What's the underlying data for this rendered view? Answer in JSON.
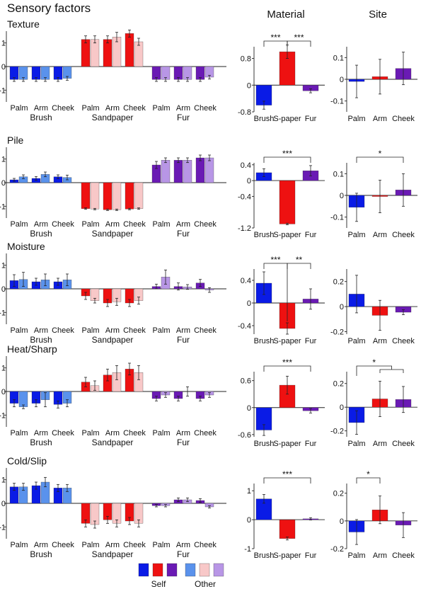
{
  "figure": {
    "title": "Sensory factors",
    "column_headers": [
      "Material",
      "Site"
    ],
    "legend": {
      "self_label": "Self",
      "other_label": "Other",
      "swatches_self": [
        "#0a1be6",
        "#ee1111",
        "#6a1ab4"
      ],
      "swatches_other": [
        "#5a92ec",
        "#f8c8c8",
        "#b896e6"
      ]
    }
  },
  "colors": {
    "brush_self": "#0a1be6",
    "brush_other": "#5a92ec",
    "sand_self": "#ee1111",
    "sand_other": "#f8c8c8",
    "fur_self": "#6a1ab4",
    "fur_other": "#b896e6"
  },
  "chart_data": [
    {
      "type": "bar",
      "panel": "Texture",
      "title": "Texture",
      "materials": [
        "Brush",
        "Sandpaper",
        "Fur"
      ],
      "sites": [
        "Palm",
        "Arm",
        "Cheek"
      ],
      "ylim": [
        -1.5,
        1.5
      ],
      "ytick_labels": [
        "1",
        "0",
        "-1"
      ],
      "series": [
        {
          "name": "Self",
          "values": [
            -0.55,
            -0.55,
            -0.55,
            1.15,
            1.15,
            1.4,
            -0.55,
            -0.55,
            -0.55
          ],
          "err": [
            0.08,
            0.08,
            0.08,
            0.15,
            0.15,
            0.15,
            0.08,
            0.08,
            0.08
          ]
        },
        {
          "name": "Other",
          "values": [
            -0.55,
            -0.55,
            -0.5,
            1.15,
            1.25,
            1.05,
            -0.55,
            -0.55,
            -0.45
          ],
          "err": [
            0.08,
            0.08,
            0.08,
            0.15,
            0.2,
            0.15,
            0.08,
            0.08,
            0.08
          ]
        }
      ]
    },
    {
      "type": "bar",
      "panel": "Pile",
      "title": "Pile",
      "materials": [
        "Brush",
        "Sandpaper",
        "Fur"
      ],
      "sites": [
        "Palm",
        "Arm",
        "Cheek"
      ],
      "ylim": [
        -1.5,
        1.5
      ],
      "ytick_labels": [
        "1",
        "0",
        "-1"
      ],
      "series": [
        {
          "name": "Self",
          "values": [
            0.12,
            0.18,
            0.25,
            -1.1,
            -1.15,
            -1.12,
            0.75,
            0.95,
            1.05
          ],
          "err": [
            0.06,
            0.08,
            0.08,
            0.03,
            0.03,
            0.03,
            0.15,
            0.1,
            0.12
          ]
        },
        {
          "name": "Other",
          "values": [
            0.25,
            0.35,
            0.22,
            -1.12,
            -1.15,
            -1.1,
            0.95,
            0.95,
            1.05
          ],
          "err": [
            0.08,
            0.1,
            0.1,
            0.03,
            0.03,
            0.03,
            0.1,
            0.1,
            0.12
          ]
        }
      ]
    },
    {
      "type": "bar",
      "panel": "Moisture",
      "title": "Moisture",
      "materials": [
        "Brush",
        "Sandpaper",
        "Fur"
      ],
      "sites": [
        "Palm",
        "Arm",
        "Cheek"
      ],
      "ylim": [
        -1.5,
        1.5
      ],
      "ytick_labels": [
        "1",
        "0",
        "-1"
      ],
      "series": [
        {
          "name": "Self",
          "values": [
            0.35,
            0.3,
            0.3,
            -0.3,
            -0.6,
            -0.6,
            0.1,
            0.1,
            0.25
          ],
          "err": [
            0.25,
            0.15,
            0.15,
            0.15,
            0.15,
            0.15,
            0.1,
            0.15,
            0.15
          ]
        },
        {
          "name": "Other",
          "values": [
            0.4,
            0.38,
            0.38,
            -0.5,
            -0.55,
            -0.5,
            0.5,
            0.08,
            -0.05
          ],
          "err": [
            0.3,
            0.25,
            0.25,
            0.1,
            0.15,
            0.15,
            0.3,
            0.1,
            0.1
          ]
        }
      ]
    },
    {
      "type": "bar",
      "panel": "Heat/Sharp",
      "title": "Heat/Sharp",
      "materials": [
        "Brush",
        "Sandpaper",
        "Fur"
      ],
      "sites": [
        "Palm",
        "Arm",
        "Cheek"
      ],
      "ylim": [
        -1.5,
        1.5
      ],
      "ytick_labels": [
        "1",
        "0",
        "-1"
      ],
      "series": [
        {
          "name": "Self",
          "values": [
            -0.5,
            -0.5,
            -0.55,
            0.4,
            0.7,
            0.95,
            -0.3,
            -0.3,
            -0.3
          ],
          "err": [
            0.15,
            0.15,
            0.15,
            0.2,
            0.25,
            0.25,
            0.1,
            0.1,
            0.1
          ]
        },
        {
          "name": "Other",
          "values": [
            -0.65,
            -0.35,
            -0.5,
            0.25,
            0.8,
            0.8,
            -0.15,
            0.0,
            -0.15
          ],
          "err": [
            0.08,
            0.3,
            0.15,
            0.2,
            0.3,
            0.3,
            0.1,
            0.2,
            0.1
          ]
        }
      ]
    },
    {
      "type": "bar",
      "panel": "Cold/Slip",
      "title": "Cold/Slip",
      "materials": [
        "Brush",
        "Sandpaper",
        "Fur"
      ],
      "sites": [
        "Palm",
        "Arm",
        "Cheek"
      ],
      "ylim": [
        -1.5,
        1.5
      ],
      "ytick_labels": [
        "1",
        "0",
        "-1"
      ],
      "series": [
        {
          "name": "Self",
          "values": [
            0.7,
            0.75,
            0.65,
            -0.85,
            -0.7,
            -0.75,
            -0.1,
            0.15,
            0.12
          ],
          "err": [
            0.15,
            0.15,
            0.15,
            0.15,
            0.15,
            0.15,
            0.05,
            0.08,
            0.08
          ]
        },
        {
          "name": "Other",
          "values": [
            0.7,
            0.9,
            0.65,
            -0.9,
            -0.85,
            -0.85,
            -0.1,
            0.15,
            -0.15
          ],
          "err": [
            0.15,
            0.2,
            0.15,
            0.15,
            0.15,
            0.15,
            0.05,
            0.08,
            0.05
          ]
        }
      ]
    },
    {
      "type": "bar",
      "panel": "Texture-Material",
      "categories": [
        "Brush",
        "S-paper",
        "Fur"
      ],
      "values": [
        -0.6,
        1.0,
        -0.17
      ],
      "err": [
        0.12,
        0.2,
        0.06
      ],
      "ylim": [
        -0.8,
        1.15
      ],
      "yticks": [
        0.8,
        0,
        -0.8
      ],
      "ytick_labels": [
        "0.8",
        "0",
        "-0.8"
      ],
      "significance": [
        {
          "from": 0,
          "to": 1,
          "label": "***"
        },
        {
          "from": 1,
          "to": 2,
          "label": "***"
        }
      ]
    },
    {
      "type": "bar",
      "panel": "Texture-Site",
      "categories": [
        "Palm",
        "Arm",
        "Cheek"
      ],
      "values": [
        -0.01,
        0.012,
        0.05
      ],
      "err": [
        0.075,
        0.08,
        0.075
      ],
      "ylim": [
        -0.15,
        0.15
      ],
      "yticks": [
        0.1,
        0,
        -0.1
      ],
      "ytick_labels": [
        "0.1",
        "0",
        "-0.1"
      ],
      "significance": []
    },
    {
      "type": "bar",
      "panel": "Pile-Material",
      "categories": [
        "Brush",
        "S-paper",
        "Fur"
      ],
      "values": [
        0.2,
        -1.1,
        0.25
      ],
      "err": [
        0.1,
        0.02,
        0.13
      ],
      "ylim": [
        -1.2,
        0.45
      ],
      "yticks": [
        0.4,
        0,
        -0.4,
        -1.2
      ],
      "ytick_labels": [
        "0.4",
        "0",
        "-0.4",
        "-1.2"
      ],
      "significance": [
        {
          "from": 0,
          "to": 2,
          "label": "***"
        }
      ]
    },
    {
      "type": "bar",
      "panel": "Pile-Site",
      "categories": [
        "Palm",
        "Arm",
        "Cheek"
      ],
      "values": [
        -0.055,
        -0.005,
        0.025
      ],
      "err": [
        0.065,
        0.075,
        0.075
      ],
      "ylim": [
        -0.15,
        0.15
      ],
      "yticks": [
        0.1,
        0,
        -0.1
      ],
      "ytick_labels": [
        "0.1",
        "0",
        "-0.1"
      ],
      "significance": [
        {
          "from": 0,
          "to": 2,
          "label": "*"
        }
      ]
    },
    {
      "type": "bar",
      "panel": "Moisture-Material",
      "categories": [
        "Brush",
        "S-paper",
        "Fur"
      ],
      "values": [
        0.35,
        -0.45,
        0.07
      ],
      "err": [
        0.2,
        0.1,
        0.18
      ],
      "ylim": [
        -0.55,
        0.6
      ],
      "yticks": [
        0.4,
        0,
        -0.4
      ],
      "ytick_labels": [
        "0.4",
        "0",
        "-0.4"
      ],
      "significance": [
        {
          "from": 0,
          "to": 1,
          "label": "***"
        },
        {
          "from": 1,
          "to": 2,
          "label": "**"
        }
      ]
    },
    {
      "type": "bar",
      "panel": "Moisture-Site",
      "categories": [
        "Palm",
        "Arm",
        "Cheek"
      ],
      "values": [
        0.1,
        -0.07,
        -0.045
      ],
      "err": [
        0.15,
        0.12,
        0.02
      ],
      "ylim": [
        -0.22,
        0.3
      ],
      "yticks": [
        0.2,
        0,
        -0.2
      ],
      "ytick_labels": [
        "0.2",
        "0",
        "-0.2"
      ],
      "significance": []
    },
    {
      "type": "bar",
      "panel": "Heat/Sharp-Material",
      "categories": [
        "Brush",
        "S-paper",
        "Fur"
      ],
      "values": [
        -0.5,
        0.5,
        -0.07
      ],
      "err": [
        0.12,
        0.2,
        0.05
      ],
      "ylim": [
        -0.65,
        0.8
      ],
      "yticks": [
        0.6,
        0,
        -0.6
      ],
      "ytick_labels": [
        "0.6",
        "0",
        "-0.6"
      ],
      "significance": [
        {
          "from": 0,
          "to": 2,
          "label": "***"
        }
      ]
    },
    {
      "type": "bar",
      "panel": "Heat/Sharp-Site",
      "categories": [
        "Palm",
        "Arm",
        "Cheek"
      ],
      "values": [
        -0.13,
        0.07,
        0.065
      ],
      "err": [
        0.1,
        0.15,
        0.11
      ],
      "ylim": [
        -0.25,
        0.3
      ],
      "yticks": [
        0.2,
        0,
        -0.2
      ],
      "ytick_labels": [
        "0.2",
        "0",
        "-0.2"
      ],
      "significance": [
        {
          "from": 0,
          "to": 1.5,
          "label": "*",
          "bracket_to": [
            1,
            2
          ]
        }
      ]
    },
    {
      "type": "bar",
      "panel": "Cold/Slip-Material",
      "categories": [
        "Brush",
        "S-paper",
        "Fur"
      ],
      "values": [
        0.72,
        -0.65,
        0.03
      ],
      "err": [
        0.15,
        0.05,
        0.04
      ],
      "ylim": [
        -1.0,
        1.25
      ],
      "yticks": [
        1,
        0,
        -1
      ],
      "ytick_labels": [
        "1",
        "0",
        "-1"
      ],
      "significance": [
        {
          "from": 0,
          "to": 2,
          "label": "***"
        }
      ]
    },
    {
      "type": "bar",
      "panel": "Cold/Slip-Site",
      "categories": [
        "Palm",
        "Arm",
        "Cheek"
      ],
      "values": [
        -0.08,
        0.08,
        -0.03
      ],
      "err": [
        0.09,
        0.1,
        0.09
      ],
      "ylim": [
        -0.2,
        0.27
      ],
      "yticks": [
        0.2,
        0,
        -0.2
      ],
      "ytick_labels": [
        "0.2",
        "0",
        "-0.2"
      ],
      "significance": [
        {
          "from": 0,
          "to": 1,
          "label": "*"
        }
      ]
    }
  ]
}
